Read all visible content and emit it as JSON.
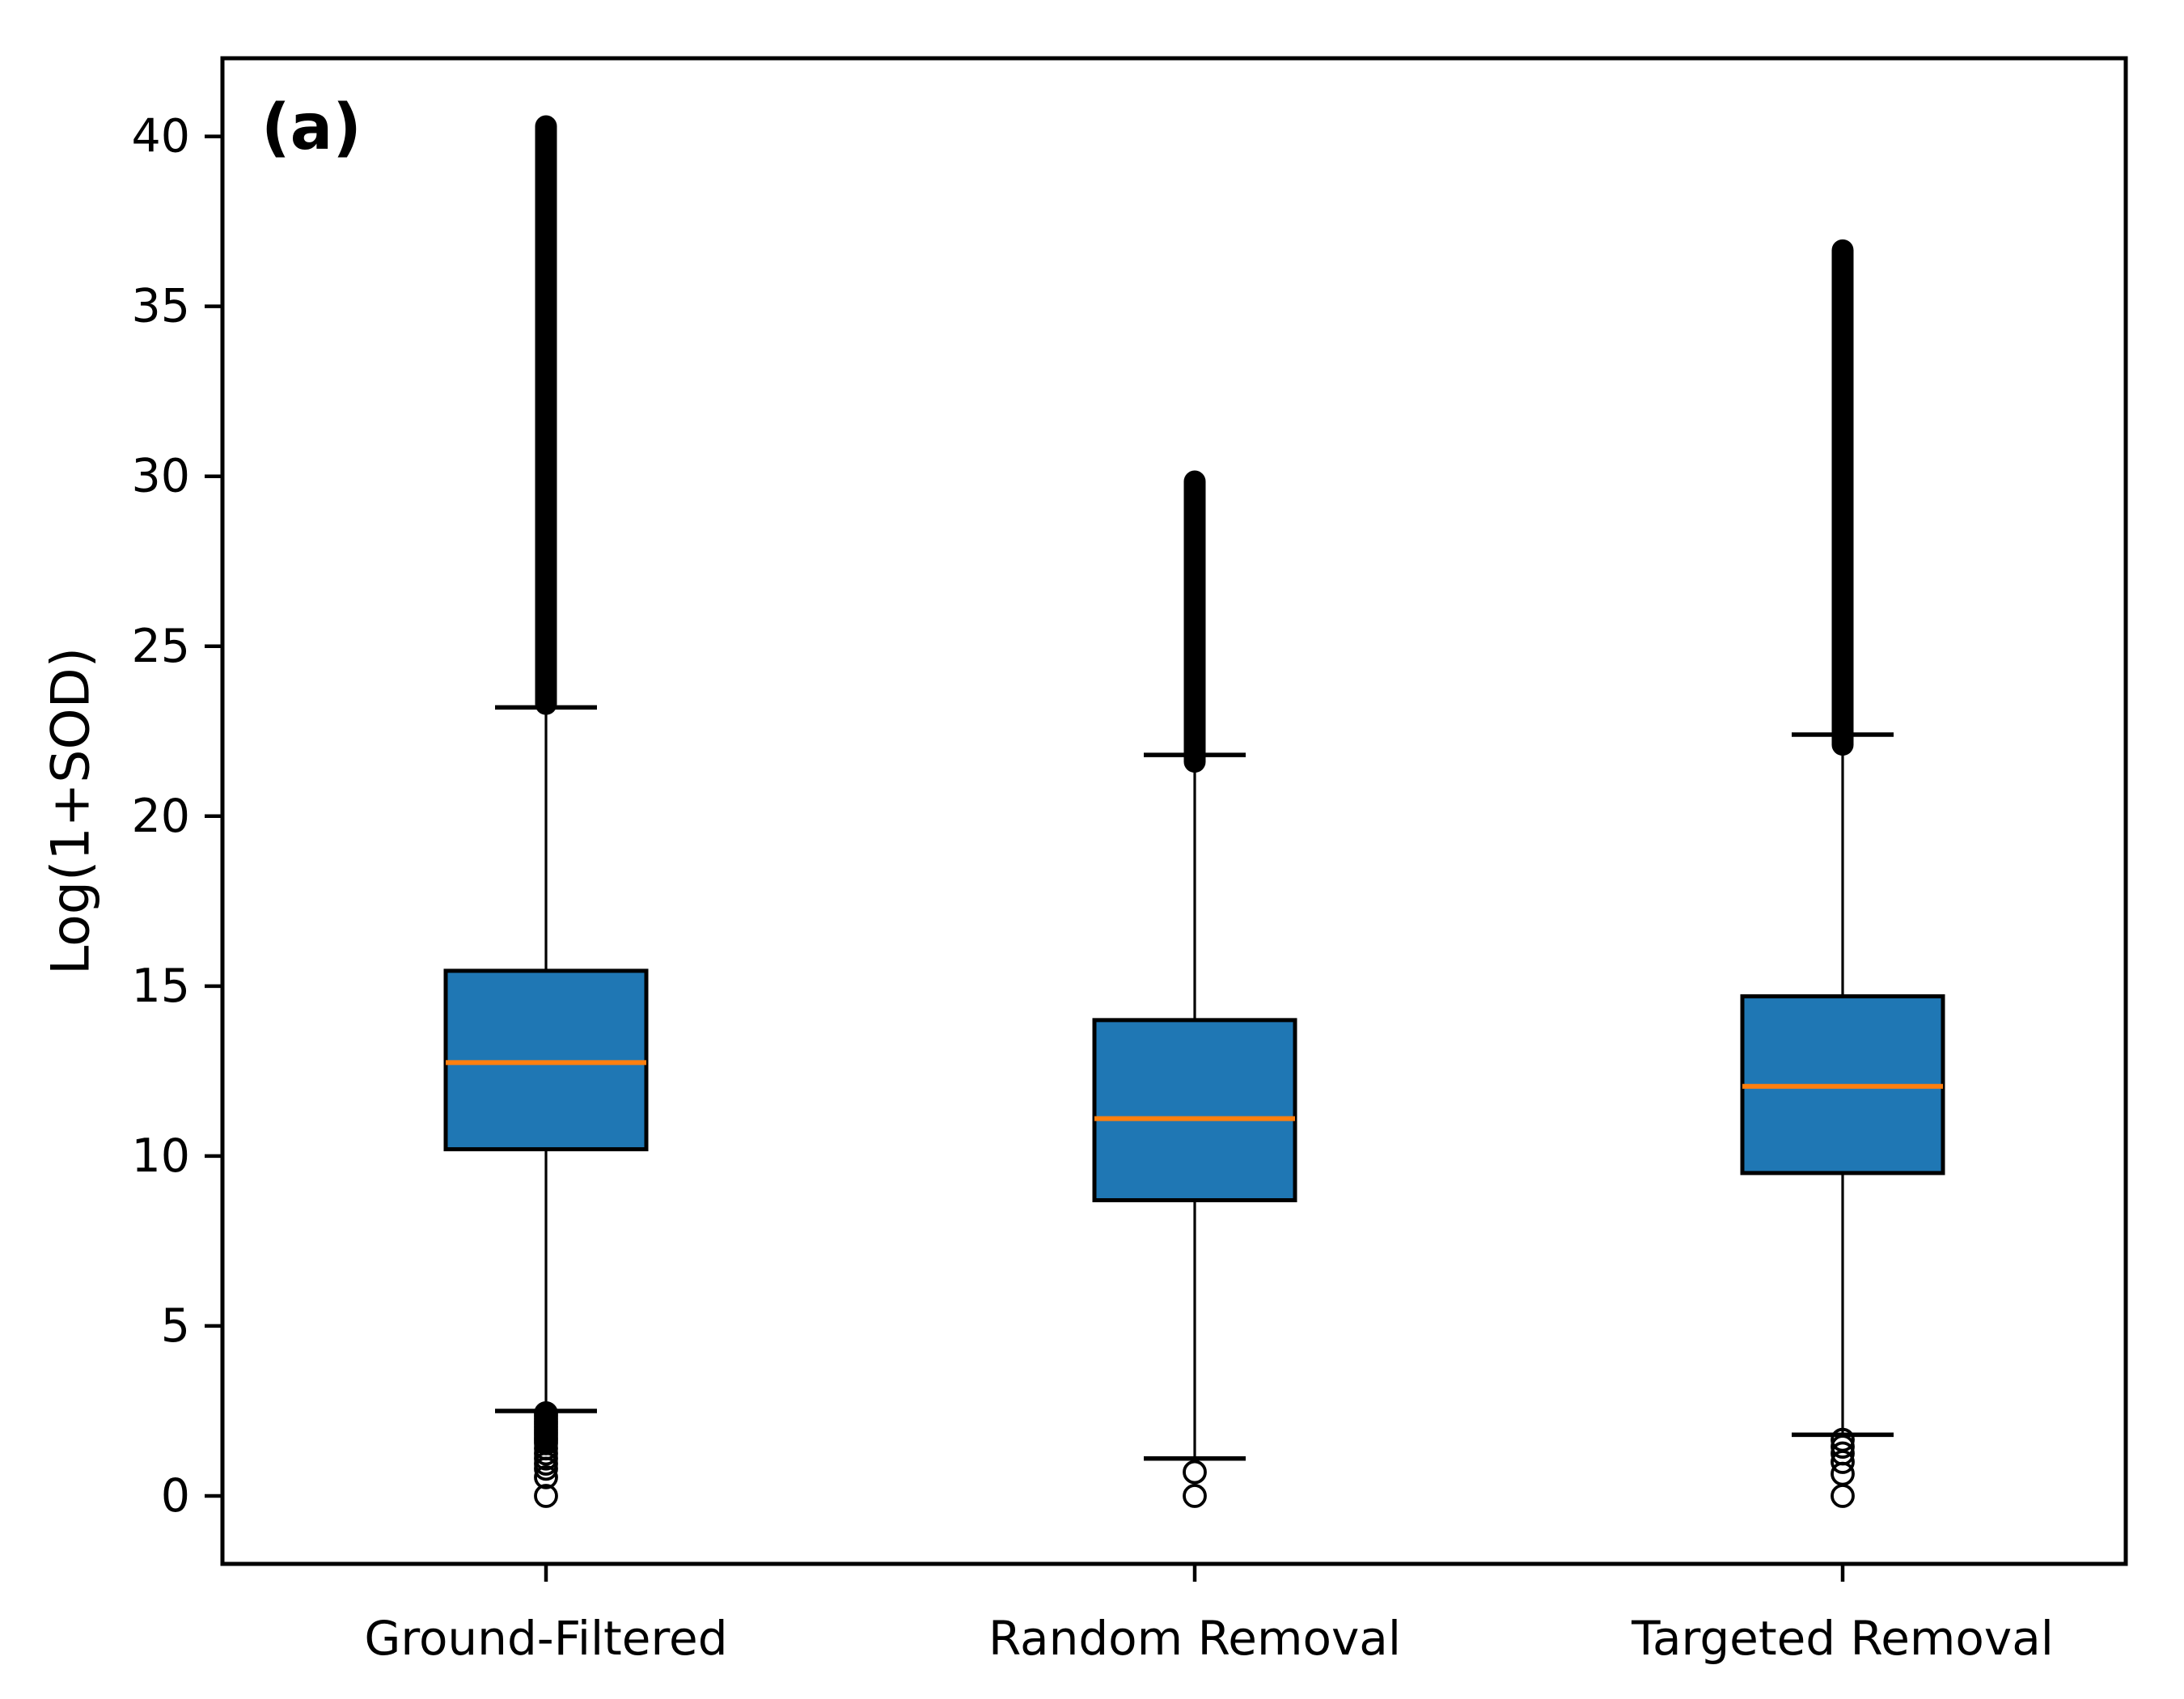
{
  "panel_label": "(a)",
  "chart_data": {
    "type": "box",
    "title": "",
    "panel_label": "(a)",
    "xlabel": "",
    "ylabel": "Log(1+SOD)",
    "categories": [
      "Ground-Filtered",
      "Random Removal",
      "Targeted Removal"
    ],
    "ylim": [
      -2.0,
      42.3
    ],
    "yticks": [
      0,
      5,
      10,
      15,
      20,
      25,
      30,
      35,
      40
    ],
    "grid": false,
    "legend": null,
    "boxes": [
      {
        "category": "Ground-Filtered",
        "q1": 10.2,
        "median": 12.75,
        "q3": 15.45,
        "whisker_low": 2.5,
        "whisker_high": 23.2,
        "outliers_high": {
          "dense_range": [
            23.3,
            40.3
          ],
          "points": []
        },
        "outliers_low": {
          "dense_range": [
            1.55,
            2.45
          ],
          "points": [
            1.4,
            1.25,
            1.1,
            0.95,
            0.8,
            0.55,
            0.0
          ]
        }
      },
      {
        "category": "Random Removal",
        "q1": 8.7,
        "median": 11.1,
        "q3": 14.0,
        "whisker_low": 1.1,
        "whisker_high": 21.8,
        "outliers_high": {
          "dense_range": [
            21.6,
            29.85
          ],
          "points": []
        },
        "outliers_low": {
          "dense_range": null,
          "points": [
            0.7,
            0.0
          ]
        }
      },
      {
        "category": "Targeted Removal",
        "q1": 9.5,
        "median": 12.05,
        "q3": 14.7,
        "whisker_low": 1.8,
        "whisker_high": 22.4,
        "outliers_high": {
          "dense_range": [
            22.1,
            36.65
          ],
          "points": []
        },
        "outliers_low": {
          "dense_range": null,
          "points": [
            1.65,
            1.45,
            1.25,
            1.0,
            0.65,
            0.0
          ]
        }
      }
    ],
    "colors": {
      "box_fill": "#1f77b4",
      "median": "#ff7f0e",
      "edge": "#000000",
      "background": "#ffffff"
    }
  }
}
